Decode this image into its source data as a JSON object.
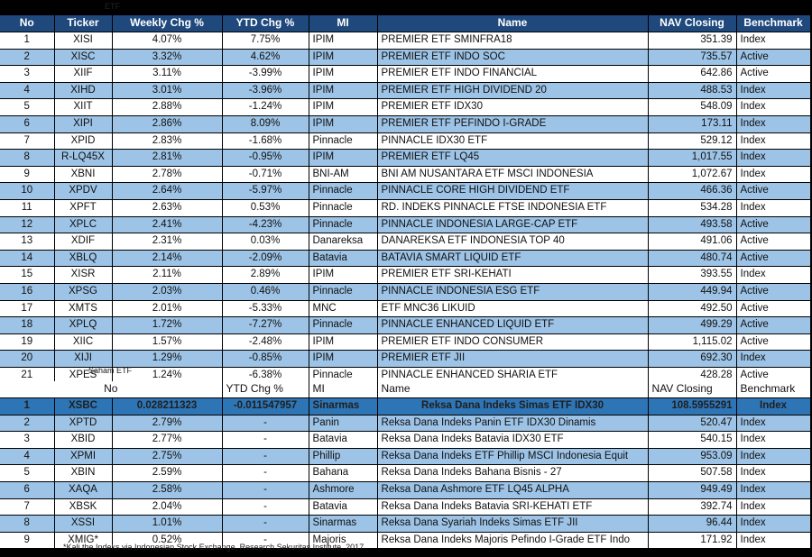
{
  "notes": {
    "top": "ETF",
    "mid": "Saham ETF",
    "bottom": "*Kali the Indeks via Indonesian Stock Exchange, Research Sekuritas Institute, 2017"
  },
  "table1": {
    "headers": [
      "No",
      "Ticker",
      "Weekly Chg %",
      "YTD Chg %",
      "MI",
      "Name",
      "NAV Closing",
      "Benchmark"
    ],
    "rows": [
      [
        "1",
        "XISI",
        "4.07%",
        "7.75%",
        "IPIM",
        "PREMIER ETF SMINFRA18",
        "351.39",
        "Index"
      ],
      [
        "2",
        "XISC",
        "3.32%",
        "4.62%",
        "IPIM",
        "PREMIER ETF INDO SOC",
        "735.57",
        "Active"
      ],
      [
        "3",
        "XIIF",
        "3.11%",
        "-3.99%",
        "IPIM",
        "PREMIER ETF INDO FINANCIAL",
        "642.86",
        "Active"
      ],
      [
        "4",
        "XIHD",
        "3.01%",
        "-3.96%",
        "IPIM",
        "PREMIER ETF HIGH DIVIDEND 20",
        "488.53",
        "Index"
      ],
      [
        "5",
        "XIIT",
        "2.88%",
        "-1.24%",
        "IPIM",
        "PREMIER ETF IDX30",
        "548.09",
        "Index"
      ],
      [
        "6",
        "XIPI",
        "2.86%",
        "8.09%",
        "IPIM",
        "PREMIER ETF PEFINDO I-GRADE",
        "173.11",
        "Index"
      ],
      [
        "7",
        "XPID",
        "2.83%",
        "-1.68%",
        "Pinnacle",
        "PINNACLE IDX30 ETF",
        "529.12",
        "Index"
      ],
      [
        "8",
        "R-LQ45X",
        "2.81%",
        "-0.95%",
        "IPIM",
        "PREMIER ETF LQ45",
        "1,017.55",
        "Index"
      ],
      [
        "9",
        "XBNI",
        "2.78%",
        "-0.71%",
        "BNI-AM",
        "BNI AM NUSANTARA ETF MSCI INDONESIA",
        "1,072.67",
        "Index"
      ],
      [
        "10",
        "XPDV",
        "2.64%",
        "-5.97%",
        "Pinnacle",
        "PINNACLE CORE HIGH DIVIDEND ETF",
        "466.36",
        "Active"
      ],
      [
        "11",
        "XPFT",
        "2.63%",
        "0.53%",
        "Pinnacle",
        "RD. INDEKS PINNACLE FTSE INDONESIA ETF",
        "534.28",
        "Index"
      ],
      [
        "12",
        "XPLC",
        "2.41%",
        "-4.23%",
        "Pinnacle",
        "PINNACLE INDONESIA LARGE-CAP ETF",
        "493.58",
        "Active"
      ],
      [
        "13",
        "XDIF",
        "2.31%",
        "0.03%",
        "Danareksa",
        "DANAREKSA ETF INDONESIA TOP 40",
        "491.06",
        "Active"
      ],
      [
        "14",
        "XBLQ",
        "2.14%",
        "-2.09%",
        "Batavia",
        "BATAVIA SMART LIQUID ETF",
        "480.74",
        "Active"
      ],
      [
        "15",
        "XISR",
        "2.11%",
        "2.89%",
        "IPIM",
        "PREMIER ETF SRI-KEHATI",
        "393.55",
        "Index"
      ],
      [
        "16",
        "XPSG",
        "2.03%",
        "0.46%",
        "Pinnacle",
        "PINNACLE INDONESIA ESG ETF",
        "449.94",
        "Active"
      ],
      [
        "17",
        "XMTS",
        "2.01%",
        "-5.33%",
        "MNC",
        "ETF MNC36 LIKUID",
        "492.50",
        "Active"
      ],
      [
        "18",
        "XPLQ",
        "1.72%",
        "-7.27%",
        "Pinnacle",
        "PINNACLE ENHANCED LIQUID ETF",
        "499.29",
        "Active"
      ],
      [
        "19",
        "XIIC",
        "1.57%",
        "-2.48%",
        "IPIM",
        "PREMIER ETF INDO CONSUMER",
        "1,115.02",
        "Active"
      ],
      [
        "20",
        "XIJI",
        "1.29%",
        "-0.85%",
        "IPIM",
        "PREMIER ETF JII",
        "692.30",
        "Index"
      ],
      [
        "21",
        "XPES",
        "1.24%",
        "-6.38%",
        "Pinnacle",
        "PINNACLE ENHANCED SHARIA ETF",
        "428.28",
        "Active"
      ]
    ]
  },
  "table2": {
    "headers": [
      "No",
      "",
      "YTD Chg %",
      "MI",
      "Name",
      "NAV Closing",
      "Benchmark"
    ],
    "rows": [
      [
        "1",
        "XSBC",
        "0.028211323",
        "-0.011547957",
        "Sinarmas",
        "Reksa Dana Indeks Simas ETF IDX30",
        "108.5955291",
        "Index"
      ],
      [
        "2",
        "XPTD",
        "2.79%",
        "-",
        "Panin",
        "Reksa Dana  Indeks Panin ETF IDX30 Dinamis",
        "520.47",
        "Index"
      ],
      [
        "3",
        "XBID",
        "2.77%",
        "-",
        "Batavia",
        "Reksa Dana Indeks Batavia IDX30 ETF",
        "540.15",
        "Index"
      ],
      [
        "4",
        "XPMI",
        "2.75%",
        "-",
        "Phillip",
        "Reksa Dana Indeks ETF Phillip MSCI Indonesia Equit",
        "953.09",
        "Index"
      ],
      [
        "5",
        "XBIN",
        "2.59%",
        "-",
        "Bahana",
        "Reksa Dana Indeks Bahana Bisnis - 27",
        "507.58",
        "Index"
      ],
      [
        "6",
        "XAQA",
        "2.58%",
        "-",
        "Ashmore",
        "Reksa Dana Ashmore ETF LQ45 ALPHA",
        "949.49",
        "Index"
      ],
      [
        "7",
        "XBSK",
        "2.04%",
        "-",
        "Batavia",
        "Reksa Dana Indeks Batavia SRI-KEHATI ETF",
        "392.74",
        "Index"
      ],
      [
        "8",
        "XSSI",
        "1.01%",
        "-",
        "Sinarmas",
        "Reksa Dana Syariah Indeks Simas ETF JII",
        "96.44",
        "Index"
      ],
      [
        "9",
        "XMIG*",
        "0.52%",
        "-",
        "Majoris",
        "Reksa Dana Indeks Majoris Pefindo I-Grade ETF Indo",
        "171.92",
        "Index"
      ]
    ]
  }
}
